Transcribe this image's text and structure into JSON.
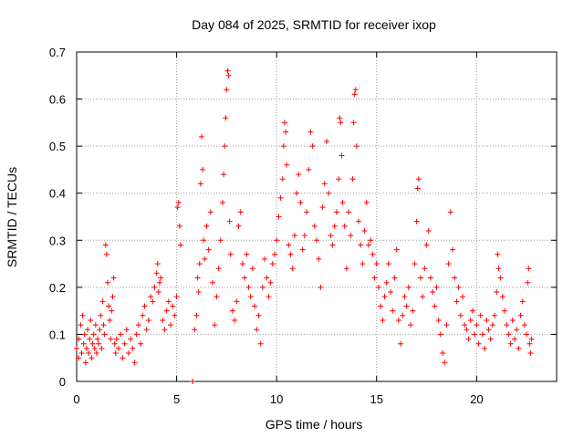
{
  "chart_data": {
    "type": "scatter",
    "title": "Day 084 of 2025, SRMTID for receiver ixop",
    "xlabel": "GPS time / hours",
    "ylabel": "SRMTID / TECUs",
    "xlim": [
      0,
      24
    ],
    "ylim": [
      0,
      0.7
    ],
    "xticks": [
      0,
      5,
      10,
      15,
      20
    ],
    "xtick_labels": [
      "0",
      "5",
      "10",
      "15",
      "20"
    ],
    "yticks": [
      0,
      0.1,
      0.2,
      0.3,
      0.4,
      0.5,
      0.6,
      0.7
    ],
    "ytick_labels": [
      "0",
      "0.1",
      "0.2",
      "0.3",
      "0.4",
      "0.5",
      "0.6",
      "0.7"
    ],
    "grid": true,
    "marker": "+",
    "series": [
      {
        "name": "SRMTID",
        "color": "#ff0000",
        "points": [
          [
            0.0,
            0.07
          ],
          [
            0.1,
            0.05
          ],
          [
            0.1,
            0.09
          ],
          [
            0.2,
            0.12
          ],
          [
            0.25,
            0.06
          ],
          [
            0.3,
            0.14
          ],
          [
            0.35,
            0.08
          ],
          [
            0.4,
            0.1
          ],
          [
            0.45,
            0.04
          ],
          [
            0.5,
            0.07
          ],
          [
            0.55,
            0.11
          ],
          [
            0.6,
            0.06
          ],
          [
            0.65,
            0.09
          ],
          [
            0.7,
            0.13
          ],
          [
            0.75,
            0.05
          ],
          [
            0.8,
            0.08
          ],
          [
            0.85,
            0.1
          ],
          [
            0.9,
            0.07
          ],
          [
            0.95,
            0.12
          ],
          [
            1.0,
            0.06
          ],
          [
            1.05,
            0.09
          ],
          [
            1.1,
            0.08
          ],
          [
            1.15,
            0.11
          ],
          [
            1.2,
            0.14
          ],
          [
            1.25,
            0.07
          ],
          [
            1.3,
            0.17
          ],
          [
            1.35,
            0.12
          ],
          [
            1.4,
            0.1
          ],
          [
            1.45,
            0.29
          ],
          [
            1.5,
            0.27
          ],
          [
            1.55,
            0.21
          ],
          [
            1.6,
            0.16
          ],
          [
            1.65,
            0.13
          ],
          [
            1.7,
            0.09
          ],
          [
            1.75,
            0.15
          ],
          [
            1.8,
            0.18
          ],
          [
            1.85,
            0.22
          ],
          [
            1.9,
            0.08
          ],
          [
            1.95,
            0.06
          ],
          [
            2.0,
            0.09
          ],
          [
            2.1,
            0.07
          ],
          [
            2.2,
            0.1
          ],
          [
            2.3,
            0.05
          ],
          [
            2.4,
            0.08
          ],
          [
            2.5,
            0.11
          ],
          [
            2.6,
            0.06
          ],
          [
            2.7,
            0.09
          ],
          [
            2.8,
            0.07
          ],
          [
            2.9,
            0.04
          ],
          [
            3.0,
            0.1
          ],
          [
            3.1,
            0.12
          ],
          [
            3.2,
            0.08
          ],
          [
            3.3,
            0.14
          ],
          [
            3.4,
            0.16
          ],
          [
            3.5,
            0.11
          ],
          [
            3.6,
            0.13
          ],
          [
            3.7,
            0.18
          ],
          [
            3.8,
            0.17
          ],
          [
            3.9,
            0.2
          ],
          [
            4.0,
            0.23
          ],
          [
            4.05,
            0.25
          ],
          [
            4.1,
            0.19
          ],
          [
            4.15,
            0.21
          ],
          [
            4.2,
            0.22
          ],
          [
            4.3,
            0.13
          ],
          [
            4.4,
            0.11
          ],
          [
            4.5,
            0.15
          ],
          [
            4.6,
            0.17
          ],
          [
            4.7,
            0.12
          ],
          [
            4.8,
            0.16
          ],
          [
            4.9,
            0.14
          ],
          [
            5.0,
            0.18
          ],
          [
            5.05,
            0.37
          ],
          [
            5.1,
            0.38
          ],
          [
            5.15,
            0.33
          ],
          [
            5.2,
            0.29
          ],
          [
            5.8,
            0.0
          ],
          [
            5.9,
            0.11
          ],
          [
            6.0,
            0.14
          ],
          [
            6.05,
            0.22
          ],
          [
            6.1,
            0.19
          ],
          [
            6.15,
            0.25
          ],
          [
            6.2,
            0.42
          ],
          [
            6.25,
            0.52
          ],
          [
            6.3,
            0.45
          ],
          [
            6.35,
            0.3
          ],
          [
            6.4,
            0.26
          ],
          [
            6.5,
            0.33
          ],
          [
            6.6,
            0.28
          ],
          [
            6.7,
            0.36
          ],
          [
            6.8,
            0.21
          ],
          [
            6.9,
            0.12
          ],
          [
            7.0,
            0.18
          ],
          [
            7.1,
            0.24
          ],
          [
            7.2,
            0.3
          ],
          [
            7.3,
            0.38
          ],
          [
            7.35,
            0.44
          ],
          [
            7.4,
            0.5
          ],
          [
            7.45,
            0.56
          ],
          [
            7.5,
            0.62
          ],
          [
            7.55,
            0.66
          ],
          [
            7.6,
            0.65
          ],
          [
            7.65,
            0.34
          ],
          [
            7.7,
            0.27
          ],
          [
            7.8,
            0.15
          ],
          [
            7.9,
            0.13
          ],
          [
            8.0,
            0.17
          ],
          [
            8.1,
            0.33
          ],
          [
            8.2,
            0.36
          ],
          [
            8.3,
            0.25
          ],
          [
            8.4,
            0.22
          ],
          [
            8.5,
            0.27
          ],
          [
            8.6,
            0.2
          ],
          [
            8.7,
            0.18
          ],
          [
            8.8,
            0.24
          ],
          [
            8.9,
            0.16
          ],
          [
            9.0,
            0.11
          ],
          [
            9.1,
            0.14
          ],
          [
            9.2,
            0.08
          ],
          [
            9.3,
            0.2
          ],
          [
            9.4,
            0.26
          ],
          [
            9.5,
            0.22
          ],
          [
            9.6,
            0.18
          ],
          [
            9.7,
            0.21
          ],
          [
            9.8,
            0.25
          ],
          [
            9.9,
            0.27
          ],
          [
            10.0,
            0.3
          ],
          [
            10.1,
            0.35
          ],
          [
            10.2,
            0.39
          ],
          [
            10.3,
            0.43
          ],
          [
            10.35,
            0.5
          ],
          [
            10.4,
            0.55
          ],
          [
            10.45,
            0.53
          ],
          [
            10.5,
            0.46
          ],
          [
            10.6,
            0.29
          ],
          [
            10.7,
            0.27
          ],
          [
            10.8,
            0.24
          ],
          [
            10.9,
            0.31
          ],
          [
            11.0,
            0.4
          ],
          [
            11.1,
            0.44
          ],
          [
            11.2,
            0.38
          ],
          [
            11.3,
            0.28
          ],
          [
            11.4,
            0.31
          ],
          [
            11.5,
            0.36
          ],
          [
            11.6,
            0.45
          ],
          [
            11.7,
            0.53
          ],
          [
            11.8,
            0.5
          ],
          [
            11.9,
            0.33
          ],
          [
            12.0,
            0.3
          ],
          [
            12.1,
            0.26
          ],
          [
            12.2,
            0.2
          ],
          [
            12.3,
            0.37
          ],
          [
            12.4,
            0.42
          ],
          [
            12.5,
            0.51
          ],
          [
            12.6,
            0.4
          ],
          [
            12.7,
            0.31
          ],
          [
            12.8,
            0.29
          ],
          [
            12.9,
            0.33
          ],
          [
            13.0,
            0.36
          ],
          [
            13.1,
            0.43
          ],
          [
            13.15,
            0.56
          ],
          [
            13.2,
            0.55
          ],
          [
            13.25,
            0.48
          ],
          [
            13.3,
            0.38
          ],
          [
            13.4,
            0.33
          ],
          [
            13.5,
            0.24
          ],
          [
            13.6,
            0.36
          ],
          [
            13.7,
            0.31
          ],
          [
            13.8,
            0.43
          ],
          [
            13.85,
            0.55
          ],
          [
            13.9,
            0.61
          ],
          [
            13.95,
            0.62
          ],
          [
            14.0,
            0.5
          ],
          [
            14.1,
            0.34
          ],
          [
            14.2,
            0.29
          ],
          [
            14.3,
            0.25
          ],
          [
            14.4,
            0.32
          ],
          [
            14.5,
            0.38
          ],
          [
            14.6,
            0.29
          ],
          [
            14.7,
            0.3
          ],
          [
            14.8,
            0.27
          ],
          [
            14.9,
            0.22
          ],
          [
            15.0,
            0.25
          ],
          [
            15.1,
            0.2
          ],
          [
            15.2,
            0.16
          ],
          [
            15.3,
            0.13
          ],
          [
            15.4,
            0.18
          ],
          [
            15.5,
            0.21
          ],
          [
            15.6,
            0.25
          ],
          [
            15.7,
            0.19
          ],
          [
            15.8,
            0.15
          ],
          [
            15.9,
            0.22
          ],
          [
            16.0,
            0.28
          ],
          [
            16.1,
            0.13
          ],
          [
            16.2,
            0.08
          ],
          [
            16.3,
            0.14
          ],
          [
            16.4,
            0.18
          ],
          [
            16.5,
            0.16
          ],
          [
            16.6,
            0.2
          ],
          [
            16.7,
            0.12
          ],
          [
            16.8,
            0.15
          ],
          [
            16.9,
            0.25
          ],
          [
            17.0,
            0.34
          ],
          [
            17.05,
            0.41
          ],
          [
            17.1,
            0.43
          ],
          [
            17.2,
            0.22
          ],
          [
            17.3,
            0.18
          ],
          [
            17.4,
            0.24
          ],
          [
            17.5,
            0.29
          ],
          [
            17.6,
            0.32
          ],
          [
            17.7,
            0.22
          ],
          [
            17.8,
            0.19
          ],
          [
            17.9,
            0.16
          ],
          [
            18.0,
            0.2
          ],
          [
            18.1,
            0.13
          ],
          [
            18.2,
            0.1
          ],
          [
            18.3,
            0.06
          ],
          [
            18.4,
            0.04
          ],
          [
            18.5,
            0.12
          ],
          [
            18.6,
            0.25
          ],
          [
            18.7,
            0.36
          ],
          [
            18.8,
            0.28
          ],
          [
            18.9,
            0.22
          ],
          [
            19.0,
            0.17
          ],
          [
            19.1,
            0.2
          ],
          [
            19.2,
            0.14
          ],
          [
            19.3,
            0.18
          ],
          [
            19.4,
            0.12
          ],
          [
            19.5,
            0.11
          ],
          [
            19.6,
            0.09
          ],
          [
            19.7,
            0.13
          ],
          [
            19.8,
            0.15
          ],
          [
            19.9,
            0.1
          ],
          [
            20.0,
            0.12
          ],
          [
            20.1,
            0.08
          ],
          [
            20.2,
            0.14
          ],
          [
            20.3,
            0.1
          ],
          [
            20.4,
            0.07
          ],
          [
            20.5,
            0.13
          ],
          [
            20.6,
            0.11
          ],
          [
            20.7,
            0.09
          ],
          [
            20.8,
            0.12
          ],
          [
            20.9,
            0.14
          ],
          [
            21.0,
            0.19
          ],
          [
            21.05,
            0.27
          ],
          [
            21.1,
            0.24
          ],
          [
            21.2,
            0.22
          ],
          [
            21.3,
            0.18
          ],
          [
            21.4,
            0.15
          ],
          [
            21.5,
            0.12
          ],
          [
            21.6,
            0.1
          ],
          [
            21.7,
            0.08
          ],
          [
            21.8,
            0.13
          ],
          [
            21.9,
            0.09
          ],
          [
            22.0,
            0.11
          ],
          [
            22.1,
            0.07
          ],
          [
            22.2,
            0.14
          ],
          [
            22.3,
            0.17
          ],
          [
            22.4,
            0.12
          ],
          [
            22.5,
            0.1
          ],
          [
            22.55,
            0.21
          ],
          [
            22.6,
            0.24
          ],
          [
            22.65,
            0.08
          ],
          [
            22.7,
            0.06
          ],
          [
            22.75,
            0.09
          ]
        ]
      }
    ]
  }
}
